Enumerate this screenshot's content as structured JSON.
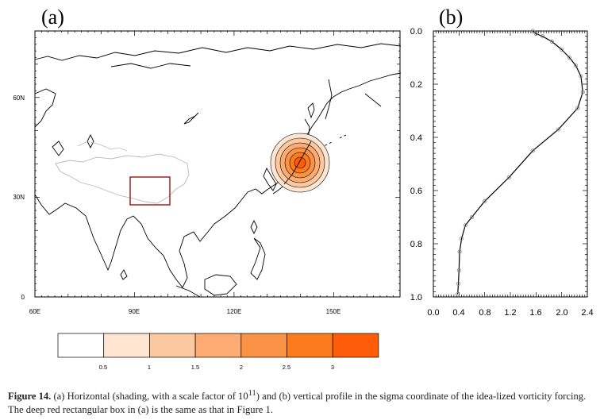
{
  "panel_a": {
    "letter": "(a)",
    "xticks": [
      "60E",
      "90E",
      "120E",
      "150E"
    ],
    "yticks": [
      "0",
      "30N",
      "60N"
    ],
    "xlim": [
      60,
      170
    ],
    "ylim": [
      0,
      80
    ],
    "box": {
      "lon": [
        89,
        101
      ],
      "lat": [
        27.5,
        35.5
      ],
      "color": "#a01010"
    },
    "forcing_center": {
      "lon": 140,
      "lat": 40
    }
  },
  "panel_b": {
    "letter": "(b)",
    "xticks": [
      "0.0",
      "0.4",
      "0.8",
      "1.2",
      "1.6",
      "2.0",
      "2.4"
    ],
    "yticks": [
      "0.0",
      "0.2",
      "0.4",
      "0.6",
      "0.8",
      "1.0"
    ]
  },
  "colorbar": {
    "labels": [
      "0.5",
      "1",
      "1.5",
      "2",
      "2.5",
      "3"
    ],
    "colors": [
      "#ffffff",
      "#fde5d2",
      "#fcc89f",
      "#fcac73",
      "#fb9346",
      "#fc7b1d",
      "#fe5c08"
    ]
  },
  "chart_data": [
    {
      "type": "line",
      "panel": "b",
      "xlim": [
        0,
        2.4
      ],
      "ylim": [
        1.0,
        0.0
      ],
      "series": [
        {
          "x": [
            0.38,
            0.39,
            0.4,
            0.41,
            0.44,
            0.5,
            0.6,
            0.8,
            1.18,
            1.55,
            1.95,
            2.25,
            2.33,
            2.3,
            2.22,
            2.12,
            2.0,
            1.85,
            1.7,
            1.6,
            1.55
          ],
          "y": [
            0.99,
            0.95,
            0.9,
            0.83,
            0.78,
            0.73,
            0.7,
            0.64,
            0.55,
            0.45,
            0.37,
            0.29,
            0.23,
            0.17,
            0.13,
            0.1,
            0.07,
            0.04,
            0.02,
            0.01,
            0.0
          ]
        }
      ],
      "grid": false
    }
  ],
  "caption": {
    "label": "Figure 14.",
    "text": " (a) Horizontal (shading, with a scale factor of 10",
    "sup": "11",
    "text2": ") and (b) vertical profile in the sigma coordinate of the idea-lized vorticity forcing. The deep red rectangular box in (a) is the same as that in Figure 1."
  }
}
